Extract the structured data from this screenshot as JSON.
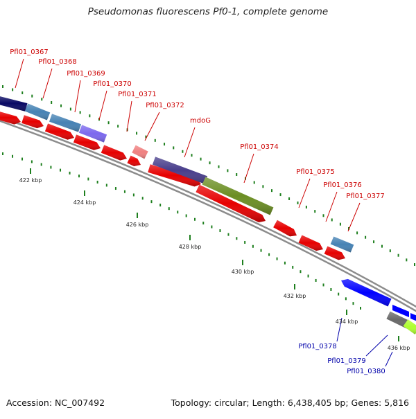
{
  "title": "Pseudomonas fluorescens Pf0-1, complete genome",
  "footer": {
    "accession": "Accession: NC_007492",
    "topology": "Topology: circular; Length: 6,438,405 bp; Genes: 5,816"
  },
  "colors": {
    "cds_arrow": "#e60000",
    "backbone": "#8c8c8c",
    "tick": "#1e7f1e",
    "scale_label": "#222222",
    "gene_label_forward": "#cc0000",
    "gene_label_reverse": "#0000aa"
  },
  "scale_labels": [
    "422 kbp",
    "424 kbp",
    "426 kbp",
    "428 kbp",
    "430 kbp",
    "432 kbp",
    "434 kbp",
    "436 kbp"
  ],
  "genes_forward": [
    {
      "label": "Pfl01_0367",
      "color": "#0a0a64"
    },
    {
      "label": "Pfl01_0368",
      "color": "#4682b4"
    },
    {
      "label": "Pfl01_0369",
      "color": "#4682b4"
    },
    {
      "label": "Pfl01_0370",
      "color": "#7b68ee"
    },
    {
      "label": "Pfl01_0371",
      "color": "#e60000"
    },
    {
      "label": "Pfl01_0372",
      "color": "#f08080"
    },
    {
      "label": "mdoG",
      "color": "#483d8b"
    },
    {
      "label": "Pfl01_0374",
      "color": "#6b8e23"
    },
    {
      "label": "Pfl01_0375",
      "color": "#e60000"
    },
    {
      "label": "Pfl01_0376",
      "color": "#e60000"
    },
    {
      "label": "Pfl01_0377",
      "color": "#4682b4"
    }
  ],
  "genes_reverse": [
    {
      "label": "Pfl01_0378",
      "color": "#0000ff"
    },
    {
      "label": "Pfl01_0379",
      "color": "#696969"
    },
    {
      "label": "Pfl01_0380",
      "color": "#adff2f"
    }
  ]
}
